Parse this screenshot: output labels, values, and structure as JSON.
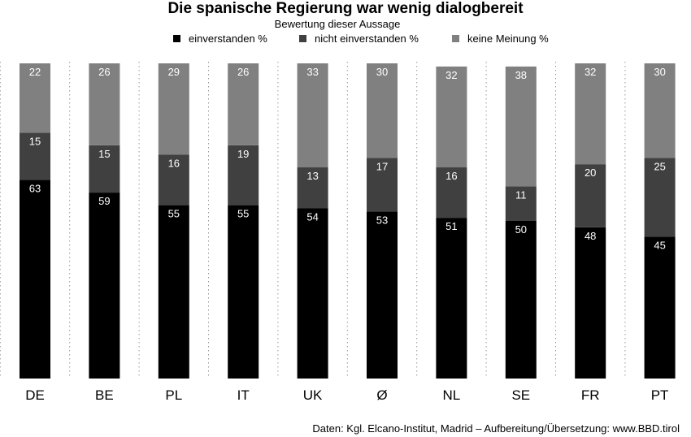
{
  "chart_data": {
    "type": "bar",
    "stacked": true,
    "title": "Die spanische Regierung war wenig dialogbereit",
    "subtitle": "Bewertung dieser Aussage",
    "categories": [
      "DE",
      "BE",
      "PL",
      "IT",
      "UK",
      "Ø",
      "NL",
      "SE",
      "FR",
      "PT"
    ],
    "series": [
      {
        "name": "einverstanden %",
        "color": "#000000",
        "values": [
          63,
          59,
          55,
          55,
          54,
          53,
          51,
          50,
          48,
          45
        ]
      },
      {
        "name": "nicht einverstanden %",
        "color": "#404040",
        "values": [
          15,
          15,
          16,
          19,
          13,
          17,
          16,
          11,
          20,
          25
        ]
      },
      {
        "name": "keine Meinung %",
        "color": "#808080",
        "values": [
          22,
          26,
          29,
          26,
          33,
          30,
          32,
          38,
          32,
          30
        ]
      }
    ],
    "ylim": [
      0,
      100
    ],
    "grid": "vertical dotted separators",
    "legend": "top-center"
  },
  "source": "Daten: Kgl. Elcano-Institut, Madrid – Aufbereitung/Übersetzung: www.BBD.tirol"
}
